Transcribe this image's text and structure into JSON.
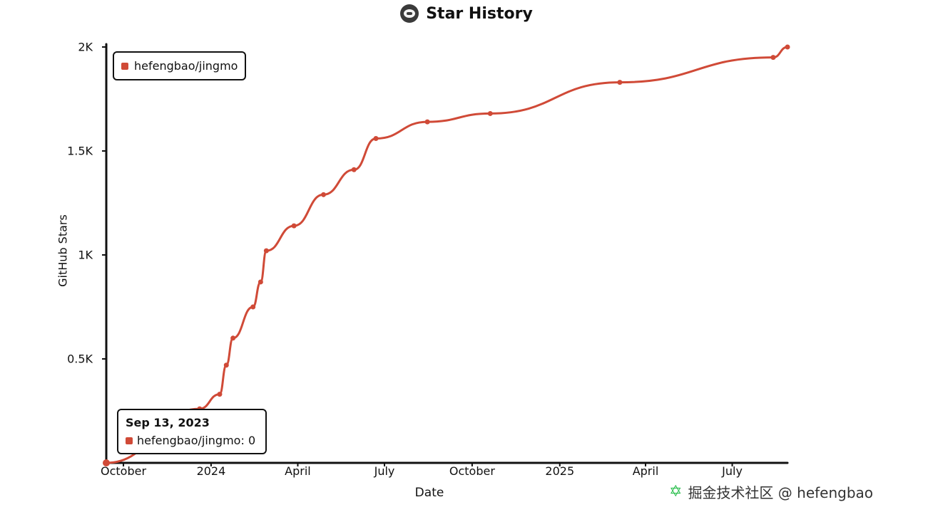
{
  "title": "Star History",
  "watermark": "掘金技术社区 @ hefengbao",
  "legend_label": "hefengbao/jingmo",
  "tooltip": {
    "date": "Sep 13, 2023",
    "label": "hefengbao/jingmo: 0"
  },
  "colors": {
    "series": "#d04a37",
    "axis": "#111111"
  },
  "chart_data": {
    "type": "line",
    "xlabel": "Date",
    "ylabel": "GitHub Stars",
    "xlim": [
      "2023-09-13",
      "2025-08-28"
    ],
    "ylim": [
      0,
      2000
    ],
    "yticks": [
      {
        "v": 500,
        "label": "0.5K"
      },
      {
        "v": 1000,
        "label": "1K"
      },
      {
        "v": 1500,
        "label": "1.5K"
      },
      {
        "v": 2000,
        "label": "2K"
      }
    ],
    "xticks": [
      {
        "date": "2023-10-01",
        "label": "October"
      },
      {
        "date": "2024-01-01",
        "label": "2024"
      },
      {
        "date": "2024-04-01",
        "label": "April"
      },
      {
        "date": "2024-07-01",
        "label": "July"
      },
      {
        "date": "2024-10-01",
        "label": "October"
      },
      {
        "date": "2025-01-01",
        "label": "2025"
      },
      {
        "date": "2025-04-01",
        "label": "April"
      },
      {
        "date": "2025-07-01",
        "label": "July"
      }
    ],
    "grid": false,
    "legend_position": "top-left",
    "series": [
      {
        "name": "hefengbao/jingmo",
        "points": [
          {
            "date": "2023-09-13",
            "value": 0
          },
          {
            "date": "2023-12-20",
            "value": 260
          },
          {
            "date": "2024-01-10",
            "value": 330
          },
          {
            "date": "2024-01-17",
            "value": 470
          },
          {
            "date": "2024-01-24",
            "value": 600
          },
          {
            "date": "2024-02-14",
            "value": 750
          },
          {
            "date": "2024-02-22",
            "value": 870
          },
          {
            "date": "2024-02-28",
            "value": 1020
          },
          {
            "date": "2024-03-28",
            "value": 1140
          },
          {
            "date": "2024-04-28",
            "value": 1290
          },
          {
            "date": "2024-05-30",
            "value": 1410
          },
          {
            "date": "2024-06-22",
            "value": 1560
          },
          {
            "date": "2024-08-15",
            "value": 1640
          },
          {
            "date": "2024-10-20",
            "value": 1680
          },
          {
            "date": "2025-03-05",
            "value": 1830
          },
          {
            "date": "2025-08-13",
            "value": 1950
          },
          {
            "date": "2025-08-28",
            "value": 2000
          }
        ]
      }
    ]
  }
}
